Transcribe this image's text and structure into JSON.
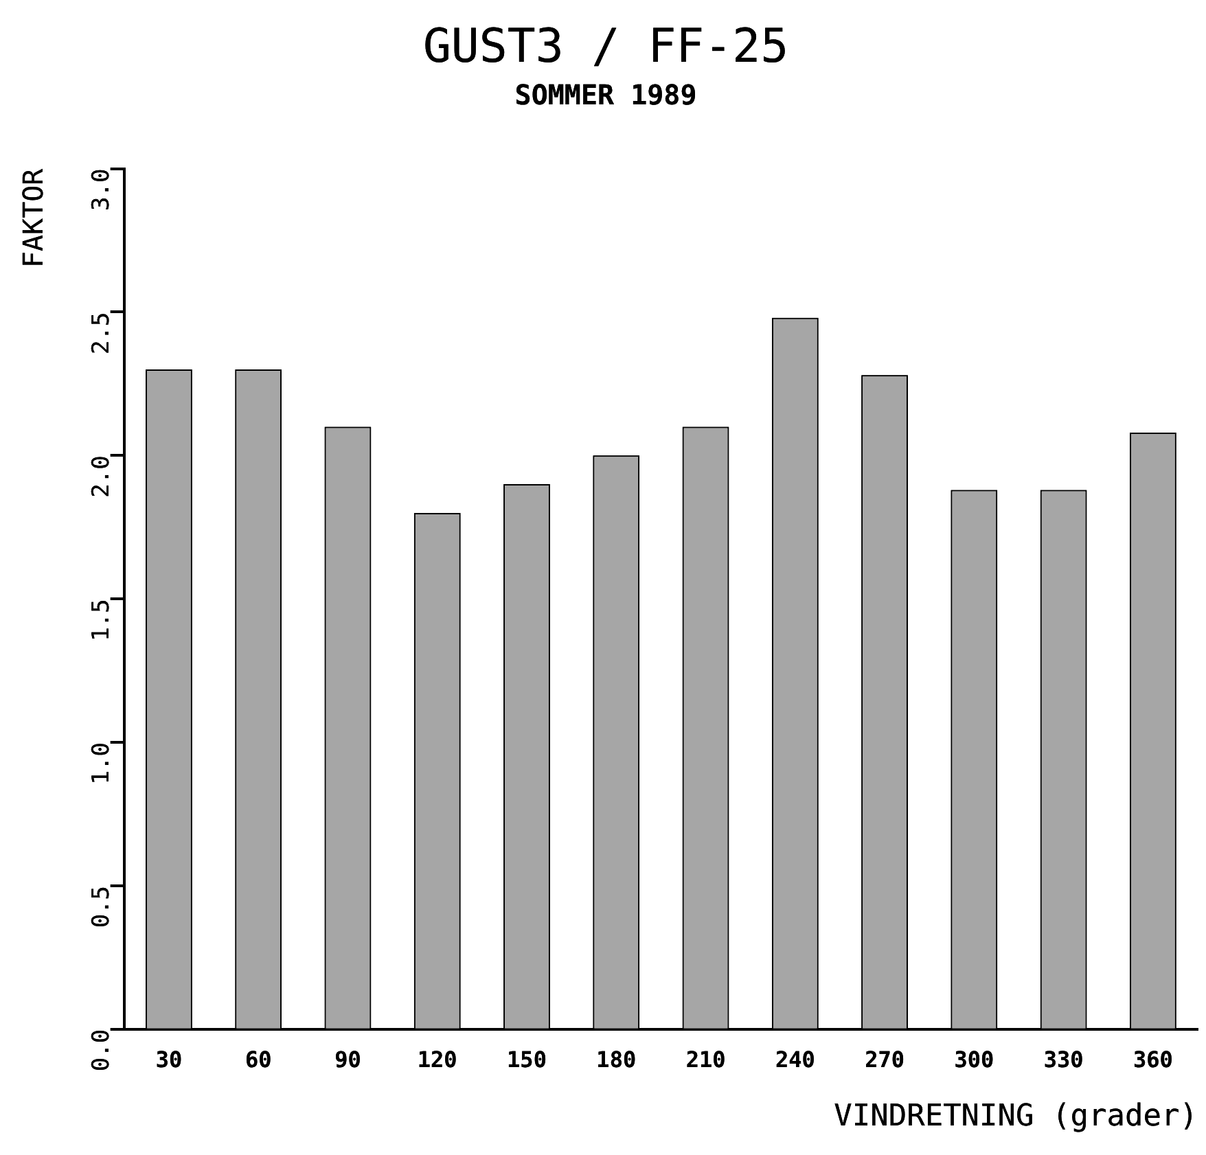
{
  "chart_data": {
    "type": "bar",
    "title": "GUST3 / FF-25",
    "subtitle": "SOMMER 1989",
    "xlabel": "VINDRETNING (grader)",
    "ylabel": "FAKTOR",
    "categories": [
      "30",
      "60",
      "90",
      "120",
      "150",
      "180",
      "210",
      "240",
      "270",
      "300",
      "330",
      "360"
    ],
    "values": [
      2.3,
      2.3,
      2.1,
      1.8,
      1.9,
      2.0,
      2.1,
      2.48,
      2.28,
      1.88,
      1.88,
      2.08
    ],
    "color": "#a6a6a6",
    "ylim": [
      0,
      3
    ],
    "yticks": [
      {
        "value": 0,
        "label": "0.0"
      },
      {
        "value": 0.5,
        "label": "0.5"
      },
      {
        "value": 1,
        "label": "1.0"
      },
      {
        "value": 1.5,
        "label": "1.5"
      },
      {
        "value": 2,
        "label": "2.0"
      },
      {
        "value": 2.5,
        "label": "2.5"
      },
      {
        "value": 3,
        "label": "3.0"
      }
    ],
    "grid": false,
    "legend": false
  }
}
